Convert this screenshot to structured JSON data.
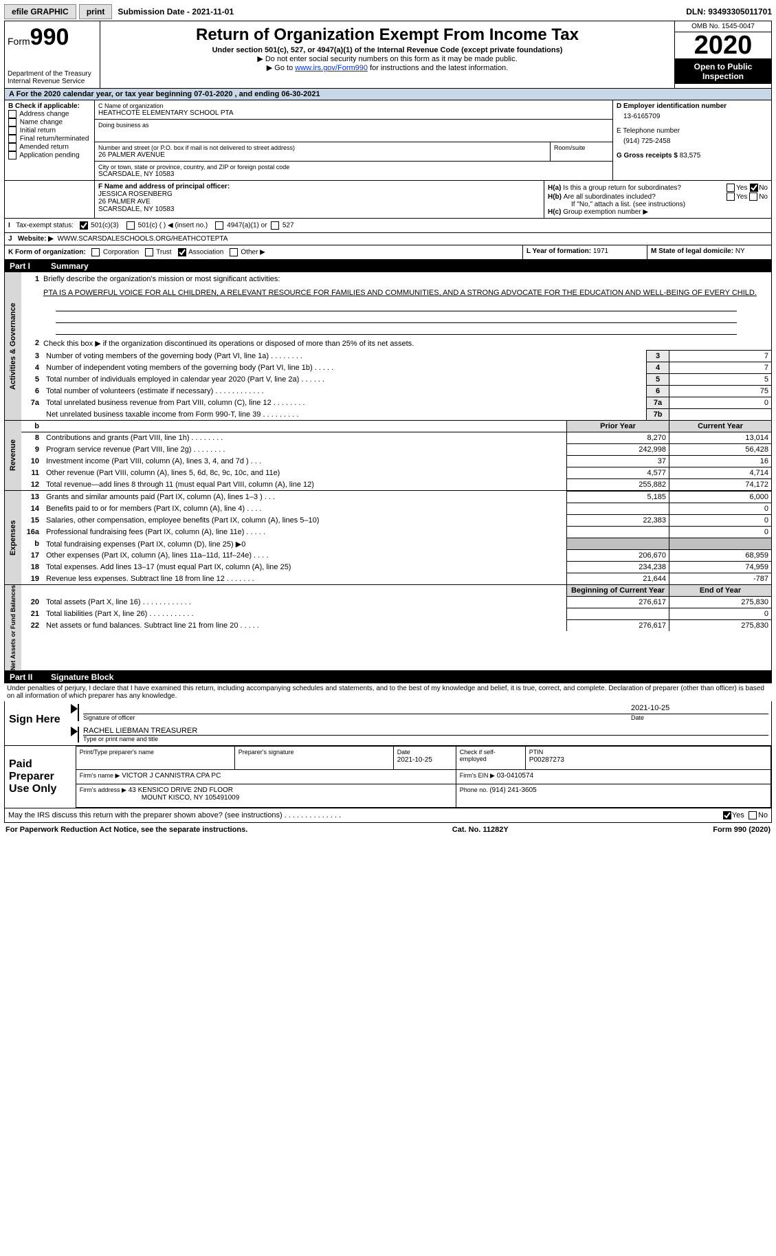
{
  "topbar": {
    "efile": "efile GRAPHIC",
    "print": "print",
    "subdate_label": "Submission Date - ",
    "subdate": "2021-11-01",
    "dln_label": "DLN: ",
    "dln": "93493305011701"
  },
  "header": {
    "form_word": "Form",
    "form_num": "990",
    "dept": "Department of the Treasury",
    "irs": "Internal Revenue Service",
    "title": "Return of Organization Exempt From Income Tax",
    "sub1": "Under section 501(c), 527, or 4947(a)(1) of the Internal Revenue Code (except private foundations)",
    "sub2": "▶ Do not enter social security numbers on this form as it may be made public.",
    "sub3_pre": "▶ Go to ",
    "sub3_link": "www.irs.gov/Form990",
    "sub3_post": " for instructions and the latest information.",
    "omb": "OMB No. 1545-0047",
    "year": "2020",
    "open": "Open to Public Inspection"
  },
  "arow": "A For the 2020 calendar year, or tax year beginning 07-01-2020    , and ending 06-30-2021",
  "B": {
    "title": "B Check if applicable:",
    "opts": [
      "Address change",
      "Name change",
      "Initial return",
      "Final return/terminated",
      "Amended return",
      "Application pending"
    ]
  },
  "C": {
    "label": "C Name of organization",
    "name": "HEATHCOTE ELEMENTARY SCHOOL PTA",
    "dba_label": "Doing business as",
    "addr_label": "Number and street (or P.O. box if mail is not delivered to street address)",
    "room": "Room/suite",
    "addr": "26 PALMER AVENUE",
    "city_label": "City or town, state or province, country, and ZIP or foreign postal code",
    "city": "SCARSDALE, NY  10583"
  },
  "D": {
    "label": "D Employer identification number",
    "val": "13-6165709"
  },
  "E": {
    "label": "E Telephone number",
    "val": "(914) 725-2458"
  },
  "G": {
    "label": "G Gross receipts $ ",
    "val": "83,575"
  },
  "F": {
    "label": "F  Name and address of principal officer:",
    "name": "JESSICA ROSENBERG",
    "addr1": "26 PALMER AVE",
    "addr2": "SCARSDALE, NY  10583"
  },
  "H": {
    "a_label": "Is this a group return for subordinates?",
    "a_yes": "Yes",
    "a_no": "No",
    "b_label": "Are all subordinates included?",
    "b_yes": "Yes",
    "b_no": "No",
    "b_note": "If \"No,\" attach a list. (see instructions)",
    "c_label": "Group exemption number ▶"
  },
  "I": {
    "label": "Tax-exempt status:",
    "o1": "501(c)(3)",
    "o2": "501(c) (  ) ◀ (insert no.)",
    "o3": "4947(a)(1) or",
    "o4": "527"
  },
  "J": {
    "label": "Website: ▶",
    "val": "WWW.SCARSDALESCHOOLS.ORG/HEATHCOTEPTA"
  },
  "K": {
    "label": "K Form of organization:",
    "o1": "Corporation",
    "o2": "Trust",
    "o3": "Association",
    "o4": "Other ▶"
  },
  "L": {
    "label": "L Year of formation: ",
    "val": "1971"
  },
  "M": {
    "label": "M State of legal domicile: ",
    "val": "NY"
  },
  "part1": {
    "num": "Part I",
    "title": "Summary",
    "l1": "Briefly describe the organization's mission or most significant activities:",
    "l1txt": "PTA IS A POWERFUL VOICE FOR ALL CHILDREN, A RELEVANT RESOURCE FOR FAMILIES AND COMMUNITIES, AND A STRONG ADVOCATE FOR THE EDUCATION AND WELL-BEING OF EVERY CHILD.",
    "l2": "Check this box ▶        if the organization discontinued its operations or disposed of more than 25% of its net assets.",
    "l3": "Number of voting members of the governing body (Part VI, line 1a)   .    .    .    .    .    .    .    .",
    "l4": "Number of independent voting members of the governing body (Part VI, line 1b)   .    .    .    .    .",
    "l5": "Total number of individuals employed in calendar year 2020 (Part V, line 2a)   .    .    .    .    .    .",
    "l6": "Total number of volunteers (estimate if necessary)   .    .    .    .    .    .    .    .    .    .    .    .",
    "l7a": "Total unrelated business revenue from Part VIII, column (C), line 12   .    .    .    .    .    .    .    .",
    "l7b": "Net unrelated business taxable income from Form 990-T, line 39   .    .    .    .    .    .    .    .    .",
    "v3": "7",
    "v4": "7",
    "v5": "5",
    "v6": "75",
    "v7a": "0",
    "v7b": "",
    "vtab1": "Activities & Governance",
    "vtab2": "Revenue",
    "vtab3": "Expenses",
    "vtab4": "Net Assets or Fund Balances",
    "py": "Prior Year",
    "cy": "Current Year",
    "bcy": "Beginning of Current Year",
    "eoy": "End of Year",
    "rows_rev": [
      {
        "n": "8",
        "t": "Contributions and grants (Part VIII, line 1h)   .    .    .    .    .    .    .    .",
        "py": "8,270",
        "cy": "13,014"
      },
      {
        "n": "9",
        "t": "Program service revenue (Part VIII, line 2g)   .    .    .    .    .    .    .    .",
        "py": "242,998",
        "cy": "56,428"
      },
      {
        "n": "10",
        "t": "Investment income (Part VIII, column (A), lines 3, 4, and 7d )   .    .    .",
        "py": "37",
        "cy": "16"
      },
      {
        "n": "11",
        "t": "Other revenue (Part VIII, column (A), lines 5, 6d, 8c, 9c, 10c, and 11e)",
        "py": "4,577",
        "cy": "4,714"
      },
      {
        "n": "12",
        "t": "Total revenue—add lines 8 through 11 (must equal Part VIII, column (A), line 12)",
        "py": "255,882",
        "cy": "74,172"
      }
    ],
    "rows_exp": [
      {
        "n": "13",
        "t": "Grants and similar amounts paid (Part IX, column (A), lines 1–3 )   .    .    .",
        "py": "5,185",
        "cy": "6,000"
      },
      {
        "n": "14",
        "t": "Benefits paid to or for members (Part IX, column (A), line 4)   .    .    .    .",
        "py": "",
        "cy": "0"
      },
      {
        "n": "15",
        "t": "Salaries, other compensation, employee benefits (Part IX, column (A), lines 5–10)",
        "py": "22,383",
        "cy": "0"
      },
      {
        "n": "16a",
        "t": "Professional fundraising fees (Part IX, column (A), line 11e)   .    .    .    .    .",
        "py": "",
        "cy": "0"
      },
      {
        "n": "b",
        "t": "Total fundraising expenses (Part IX, column (D), line 25) ▶0",
        "py": "__shade__",
        "cy": "__shade__"
      },
      {
        "n": "17",
        "t": "Other expenses (Part IX, column (A), lines 11a–11d, 11f–24e)   .    .    .    .",
        "py": "206,670",
        "cy": "68,959"
      },
      {
        "n": "18",
        "t": "Total expenses. Add lines 13–17 (must equal Part IX, column (A), line 25)",
        "py": "234,238",
        "cy": "74,959"
      },
      {
        "n": "19",
        "t": "Revenue less expenses. Subtract line 18 from line 12  .    .    .    .    .    .    .",
        "py": "21,644",
        "cy": "-787"
      }
    ],
    "rows_na": [
      {
        "n": "20",
        "t": "Total assets (Part X, line 16)   .    .    .    .    .    .    .    .    .    .    .    .",
        "py": "276,617",
        "cy": "275,830"
      },
      {
        "n": "21",
        "t": "Total liabilities (Part X, line 26)   .    .    .    .    .    .    .    .    .    .    .",
        "py": "",
        "cy": "0"
      },
      {
        "n": "22",
        "t": "Net assets or fund balances. Subtract line 21 from line 20  .    .    .    .    .",
        "py": "276,617",
        "cy": "275,830"
      }
    ]
  },
  "part2": {
    "num": "Part II",
    "title": "Signature Block",
    "decl": "Under penalties of perjury, I declare that I have examined this return, including accompanying schedules and statements, and to the best of my knowledge and belief, it is true, correct, and complete. Declaration of preparer (other than officer) is based on all information of which preparer has any knowledge.",
    "sign_here": "Sign Here",
    "sig_officer": "Signature of officer",
    "sig_date": "Date",
    "sig_dateval": "2021-10-25",
    "sig_name": "RACHEL LIEBMAN  TREASURER",
    "sig_name_lbl": "Type or print name and title",
    "paid": "Paid Preparer Use Only",
    "p_name_lbl": "Print/Type preparer's name",
    "p_sig_lbl": "Preparer's signature",
    "p_date_lbl": "Date",
    "p_date": "2021-10-25",
    "p_se": "Check        if self-employed",
    "p_ptin_lbl": "PTIN",
    "p_ptin": "P00287273",
    "firm_name_lbl": "Firm's name    ▶",
    "firm_name": "VICTOR J CANNISTRA CPA PC",
    "firm_ein_lbl": "Firm's EIN ▶",
    "firm_ein": "03-0410574",
    "firm_addr_lbl": "Firm's address ▶",
    "firm_addr1": "43 KENSICO DRIVE 2ND FLOOR",
    "firm_addr2": "MOUNT KISCO, NY  105491009",
    "phone_lbl": "Phone no. ",
    "phone": "(914) 241-3605",
    "discuss": "May the IRS discuss this return with the preparer shown above? (see instructions)   .    .    .    .    .    .    .    .    .    .    .    .    .    .",
    "yes": "Yes",
    "no": "No"
  },
  "footer": {
    "l": "For Paperwork Reduction Act Notice, see the separate instructions.",
    "m": "Cat. No. 11282Y",
    "r": "Form 990 (2020)"
  }
}
